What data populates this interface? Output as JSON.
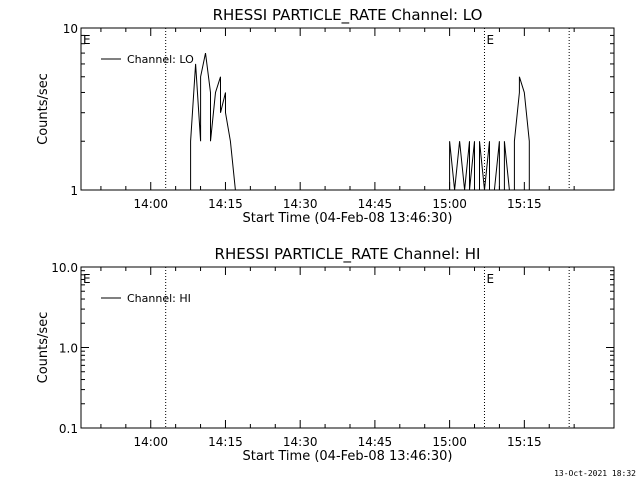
{
  "timestamp": "13-Oct-2021 18:32",
  "colors": {
    "background": "#ffffff",
    "foreground": "#000000"
  },
  "chart_data": [
    {
      "type": "line",
      "title": "RHESSI PARTICLE_RATE Channel: LO",
      "xlabel": "Start Time (04-Feb-08 13:46:30)",
      "ylabel": "Counts/sec",
      "x_unit": "minutes",
      "xlim": [
        "13:46",
        "15:33"
      ],
      "xticks": [
        "14:00",
        "14:15",
        "14:30",
        "14:45",
        "15:00",
        "15:15"
      ],
      "y_scale": "log",
      "ylim": [
        1,
        10
      ],
      "yticks": [
        "1",
        "10"
      ],
      "legend": {
        "entries": [
          "Channel: LO"
        ],
        "position": "top-left"
      },
      "markers": [
        {
          "time": "14:03",
          "label": ""
        },
        {
          "time": "15:07",
          "label": "E"
        },
        {
          "time": "15:24",
          "label": ""
        },
        {
          "time": "13:46",
          "label": "E"
        }
      ],
      "series": [
        {
          "name": "Channel: LO",
          "x": [
            "14:08",
            "14:08",
            "14:09",
            "14:10",
            "14:10",
            "14:11",
            "14:12",
            "14:12",
            "14:13",
            "14:14",
            "14:14",
            "14:15",
            "14:15",
            "14:16",
            "14:17",
            "14:17",
            "14:18",
            "15:00",
            "15:00",
            "15:01",
            "15:02",
            "15:02",
            "15:03",
            "15:04",
            "15:04",
            "15:05",
            "15:05",
            "15:06",
            "15:06",
            "15:07",
            "15:08",
            "15:08",
            "15:09",
            "15:10",
            "15:10",
            "15:11",
            "15:11",
            "15:12",
            "15:13",
            "15:13",
            "15:14",
            "15:14",
            "15:15",
            "15:16",
            "15:16",
            "15:17"
          ],
          "y": [
            1,
            2,
            6,
            2,
            5,
            7,
            4,
            2,
            4,
            5,
            3,
            4,
            3,
            2,
            1,
            1,
            1,
            1,
            2,
            1,
            2,
            2,
            1,
            2,
            1,
            2,
            1,
            1,
            2,
            1,
            2,
            1,
            1,
            2,
            1,
            1,
            2,
            1,
            1,
            2,
            4,
            5,
            4,
            2,
            1,
            1
          ]
        }
      ]
    },
    {
      "type": "line",
      "title": "RHESSI PARTICLE_RATE Channel: HI",
      "xlabel": "Start Time (04-Feb-08 13:46:30)",
      "ylabel": "Counts/sec",
      "x_unit": "minutes",
      "xlim": [
        "13:46",
        "15:33"
      ],
      "xticks": [
        "14:00",
        "14:15",
        "14:30",
        "14:45",
        "15:00",
        "15:15"
      ],
      "y_scale": "log",
      "ylim": [
        0.1,
        10
      ],
      "yticks": [
        "0.1",
        "1.0",
        "10.0"
      ],
      "legend": {
        "entries": [
          "Channel: HI"
        ],
        "position": "top-left"
      },
      "markers": [
        {
          "time": "14:03",
          "label": ""
        },
        {
          "time": "15:07",
          "label": "E"
        },
        {
          "time": "15:24",
          "label": ""
        },
        {
          "time": "13:46",
          "label": "E"
        }
      ],
      "series": [
        {
          "name": "Channel: HI",
          "x": [],
          "y": []
        }
      ]
    }
  ]
}
